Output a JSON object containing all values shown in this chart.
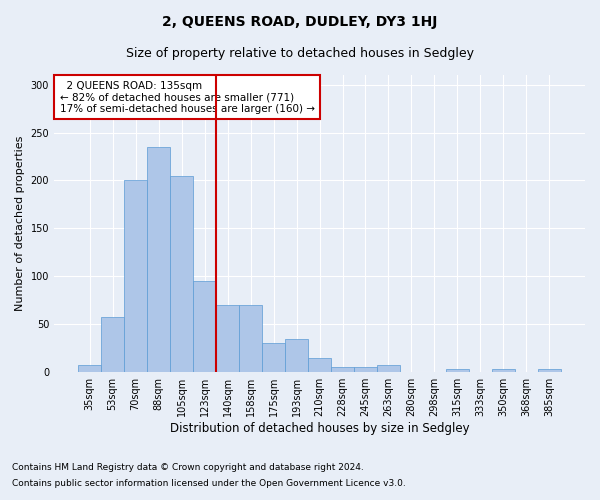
{
  "title": "2, QUEENS ROAD, DUDLEY, DY3 1HJ",
  "subtitle": "Size of property relative to detached houses in Sedgley",
  "xlabel": "Distribution of detached houses by size in Sedgley",
  "ylabel": "Number of detached properties",
  "categories": [
    "35sqm",
    "53sqm",
    "70sqm",
    "88sqm",
    "105sqm",
    "123sqm",
    "140sqm",
    "158sqm",
    "175sqm",
    "193sqm",
    "210sqm",
    "228sqm",
    "245sqm",
    "263sqm",
    "280sqm",
    "298sqm",
    "315sqm",
    "333sqm",
    "350sqm",
    "368sqm",
    "385sqm"
  ],
  "values": [
    8,
    58,
    200,
    235,
    205,
    95,
    70,
    70,
    30,
    35,
    15,
    5,
    5,
    7,
    0,
    0,
    3,
    0,
    3,
    0,
    3
  ],
  "bar_color": "#aec6e8",
  "bar_edge_color": "#5b9bd5",
  "background_color": "#e8eef7",
  "grid_color": "#ffffff",
  "annotation_box_text": "  2 QUEENS ROAD: 135sqm\n← 82% of detached houses are smaller (771)\n17% of semi-detached houses are larger (160) →",
  "annotation_box_color": "#ffffff",
  "annotation_box_edge_color": "#cc0000",
  "vline_x": 6.0,
  "vline_color": "#cc0000",
  "ylim": [
    0,
    310
  ],
  "yticks": [
    0,
    50,
    100,
    150,
    200,
    250,
    300
  ],
  "footnote1": "Contains HM Land Registry data © Crown copyright and database right 2024.",
  "footnote2": "Contains public sector information licensed under the Open Government Licence v3.0.",
  "title_fontsize": 10,
  "subtitle_fontsize": 9,
  "xlabel_fontsize": 8.5,
  "ylabel_fontsize": 8,
  "tick_fontsize": 7,
  "annotation_fontsize": 7.5,
  "footnote_fontsize": 6.5
}
